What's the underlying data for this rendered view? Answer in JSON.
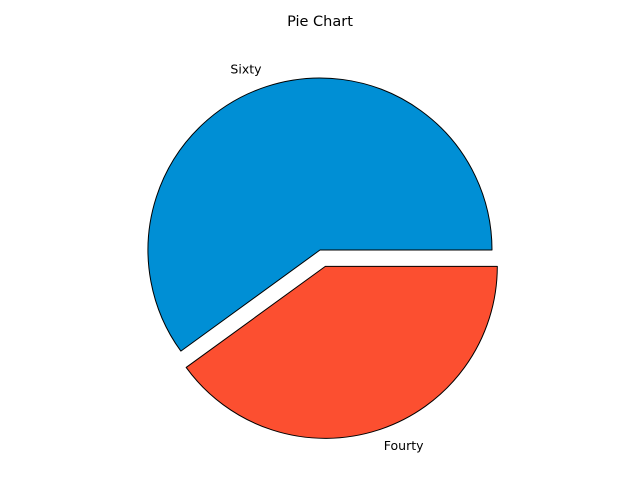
{
  "chart_data": {
    "type": "pie",
    "title": "Pie Chart",
    "labels": [
      "Sixty",
      "Fourty"
    ],
    "values": [
      60,
      40
    ],
    "colors": [
      "#008fd5",
      "#fc4f30"
    ],
    "edge_color": "#000000",
    "explode": [
      0,
      0.1
    ],
    "start_angle": 0,
    "direction": "counterclockwise"
  }
}
